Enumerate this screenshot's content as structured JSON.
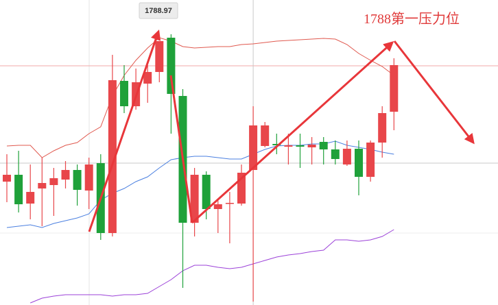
{
  "chart_data": {
    "type": "candlestick",
    "annotation": "1788第一压力位",
    "ylim": [
      1769.75,
      1792
    ],
    "up_color": "#e8464a",
    "down_color": "#1fa13a",
    "open": [
      1778.75,
      1779.25,
      1777.15,
      1778.25,
      1778.5,
      1778.9,
      1779.6,
      1778.1,
      1780.1,
      1775,
      1786.1,
      1784.25,
      1785.9,
      1786.75,
      1789.25,
      1785,
      1775.75,
      1779.25,
      1776.75,
      1777.15,
      1777.15,
      1779.6,
      1781.35,
      1781.5,
      1781.3,
      1781.4,
      1781.25,
      1781.65,
      1781.1,
      1780,
      1781.15,
      1779.1,
      1781.6,
      1783.85
    ],
    "high": [
      1780.75,
      1781,
      1780,
      1780.5,
      1779.75,
      1780.25,
      1780,
      1780.5,
      1780.75,
      1788,
      1787.25,
      1787,
      1787.25,
      1788.97,
      1789.5,
      1785.5,
      1779.75,
      1779.5,
      1777.5,
      1778,
      1780,
      1784.25,
      1783.1,
      1782.25,
      1782.25,
      1782.25,
      1782,
      1782,
      1781.75,
      1781.75,
      1781.75,
      1781.75,
      1784.25,
      1787.75
    ],
    "low": [
      1777.25,
      1776.5,
      1776,
      1775.5,
      1776.25,
      1778.25,
      1777,
      1776.75,
      1774.5,
      1774.75,
      1783.75,
      1784,
      1784.5,
      1786,
      1782.25,
      1771,
      1774.75,
      1776,
      1775,
      1774.25,
      1777,
      1770,
      1781.25,
      1780.75,
      1780,
      1779.75,
      1780,
      1780,
      1780,
      1779.9,
      1777.75,
      1778.75,
      1780.5,
      1782.5
    ],
    "close": [
      1779.25,
      1777.1,
      1778,
      1778.65,
      1779,
      1779.6,
      1778.15,
      1780,
      1775,
      1786.15,
      1784.25,
      1786,
      1786.75,
      1789,
      1785.15,
      1775.75,
      1779.25,
      1776.75,
      1777.1,
      1777.2,
      1779.4,
      1782.85,
      1782.85,
      1781.4,
      1781.4,
      1781.3,
      1781.45,
      1781.1,
      1780.4,
      1781.15,
      1779.1,
      1781.6,
      1783.75,
      1787.25
    ],
    "bands": [
      {
        "color": "#e0584e",
        "values": [
          1781.35,
          1781.4,
          1781.4,
          1780.5,
          1781,
          1781.4,
          1781.6,
          1782.25,
          1782.75,
          1785,
          1786.5,
          1787.6,
          1788.5,
          1789.25,
          1789,
          1788.6,
          1788.5,
          1788.55,
          1788.6,
          1788.6,
          1788.75,
          1788.8,
          1788.9,
          1789,
          1789.05,
          1789.1,
          1789.15,
          1789.2,
          1789.15,
          1788.75,
          1788.1,
          1787.6,
          1787.15,
          1786.5
        ]
      },
      {
        "color": "#4a7fe0",
        "values": [
          1775.4,
          1775.5,
          1775.6,
          1775.4,
          1775.7,
          1775.9,
          1776.1,
          1776.4,
          1777.4,
          1777.9,
          1778.25,
          1778.75,
          1779.1,
          1779.75,
          1780.35,
          1780.5,
          1780.6,
          1780.6,
          1780.5,
          1780.4,
          1780.4,
          1780.75,
          1781.1,
          1781.35,
          1781.4,
          1781.4,
          1781.5,
          1781.5,
          1781.7,
          1781.4,
          1781.25,
          1781.1,
          1780.9,
          1780.75
        ]
      },
      {
        "color": "#9b40d8",
        "values": [
          null,
          null,
          1769.9,
          1770.25,
          1770.4,
          1770.5,
          1770.5,
          1770.5,
          1770.5,
          1770.4,
          1770.5,
          1770.5,
          1770.6,
          1771.1,
          1771.6,
          1772.25,
          1772.65,
          1772.65,
          1772.5,
          1772.4,
          1772.5,
          1772.75,
          1773,
          1773.25,
          1773.4,
          1773.5,
          1773.65,
          1773.75,
          1774.5,
          1774.5,
          1774.4,
          1774.5,
          1774.75,
          1775.25
        ]
      }
    ],
    "level_line": 1787.2,
    "crosshair": {
      "index": 21,
      "price": 1780.1
    }
  }
}
